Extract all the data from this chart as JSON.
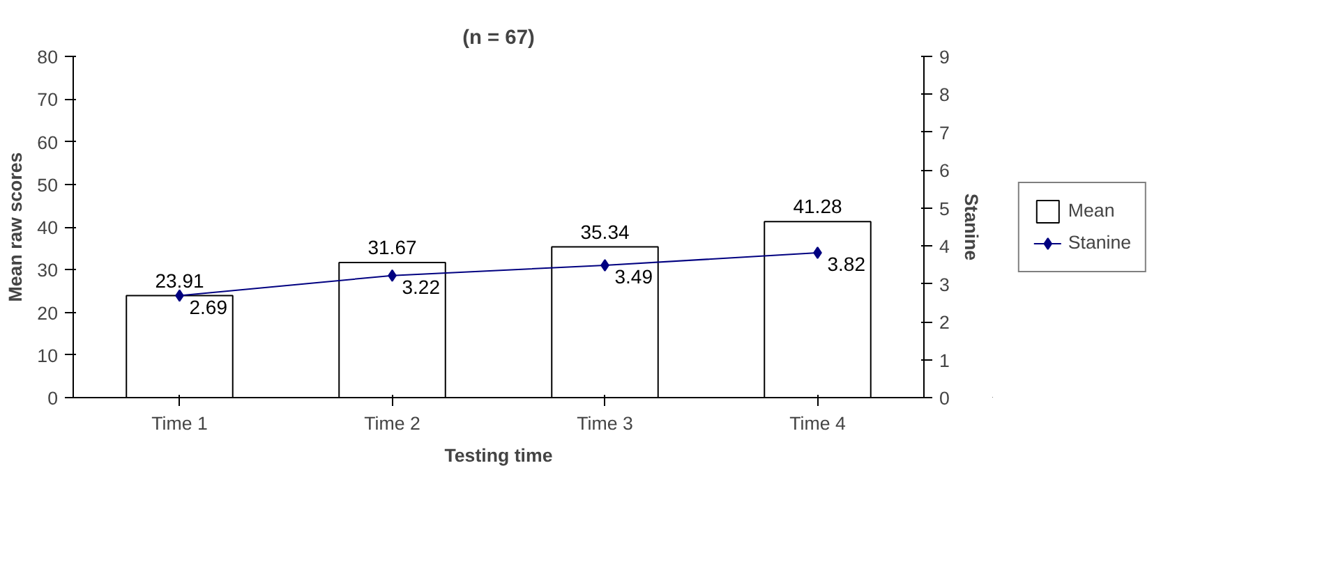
{
  "chart_data": {
    "type": "bar",
    "title": "(n = 67)",
    "xlabel": "Testing time",
    "ylabel": "Mean raw scores",
    "y2label": "Stanine",
    "categories": [
      "Time 1",
      "Time 2",
      "Time 3",
      "Time 4"
    ],
    "series": [
      {
        "name": "Mean",
        "color": "#ffffff",
        "values": [
          23.91,
          31.67,
          35.34,
          41.28
        ]
      },
      {
        "name": "Stanine",
        "type": "line",
        "axis": "y2",
        "color": "#000080",
        "values": [
          2.69,
          3.22,
          3.49,
          3.82
        ]
      }
    ],
    "ylim": [
      0,
      80
    ],
    "yticks": [
      0,
      10,
      20,
      30,
      40,
      50,
      60,
      70,
      80
    ],
    "y2lim": [
      0,
      9
    ],
    "y2ticks": [
      0,
      1,
      2,
      3,
      4,
      5,
      6,
      7,
      8,
      9
    ],
    "data_labels": true,
    "grid": false,
    "legend": "right",
    "marker": "diamond",
    "line_style": "solid"
  }
}
